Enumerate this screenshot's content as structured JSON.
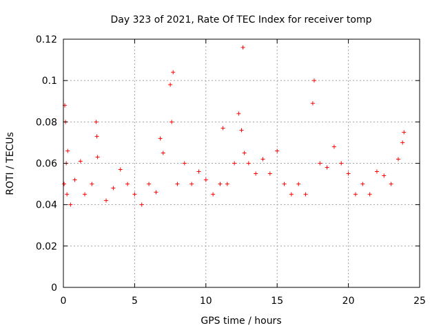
{
  "chart_data": {
    "type": "scatter",
    "title": "Day 323 of 2021, Rate Of TEC Index for receiver tomp",
    "xlabel": "GPS time / hours",
    "ylabel": "ROTI / TECUs",
    "xlim": [
      0,
      25
    ],
    "ylim": [
      0,
      0.12
    ],
    "x_ticks": [
      "0",
      "5",
      "10",
      "15",
      "20",
      "25"
    ],
    "y_ticks": [
      "0",
      "0.02",
      "0.04",
      "0.06",
      "0.08",
      "0.1",
      "0.12"
    ],
    "x_tick_values": [
      0,
      5,
      10,
      15,
      20,
      25
    ],
    "y_tick_values": [
      0,
      0.02,
      0.04,
      0.06,
      0.08,
      0.1,
      0.12
    ],
    "grid": true,
    "marker": "+",
    "color": "#ff0000",
    "series": [
      {
        "x": [
          0.05,
          0.1,
          0.15,
          0.2,
          0.25,
          0.3,
          0.5,
          0.8,
          1.2,
          1.5,
          2.0,
          2.3,
          2.35,
          2.4,
          3.0,
          3.5,
          4.0,
          4.5,
          5.0,
          5.5,
          6.0,
          6.5,
          6.8,
          7.0,
          7.5,
          7.6,
          7.7,
          8.0,
          8.5,
          9.0,
          9.5,
          10.0,
          10.5,
          11.0,
          11.2,
          11.5,
          12.0,
          12.3,
          12.5,
          12.6,
          12.7,
          13.0,
          13.5,
          14.0,
          14.5,
          15.0,
          15.5,
          16.0,
          16.5,
          17.0,
          17.5,
          17.6,
          18.0,
          18.5,
          19.0,
          19.5,
          20.0,
          20.5,
          21.0,
          21.5,
          22.0,
          22.5,
          23.0,
          23.5,
          23.8,
          23.9
        ],
        "y": [
          0.05,
          0.088,
          0.08,
          0.06,
          0.045,
          0.066,
          0.04,
          0.052,
          0.061,
          0.045,
          0.05,
          0.08,
          0.073,
          0.063,
          0.042,
          0.048,
          0.057,
          0.05,
          0.045,
          0.04,
          0.05,
          0.046,
          0.072,
          0.065,
          0.098,
          0.08,
          0.104,
          0.05,
          0.06,
          0.05,
          0.056,
          0.052,
          0.045,
          0.05,
          0.077,
          0.05,
          0.06,
          0.084,
          0.076,
          0.116,
          0.065,
          0.06,
          0.055,
          0.062,
          0.055,
          0.066,
          0.05,
          0.045,
          0.05,
          0.045,
          0.089,
          0.1,
          0.06,
          0.058,
          0.068,
          0.06,
          0.055,
          0.045,
          0.05,
          0.045,
          0.056,
          0.054,
          0.05,
          0.062,
          0.07,
          0.075
        ]
      }
    ]
  }
}
